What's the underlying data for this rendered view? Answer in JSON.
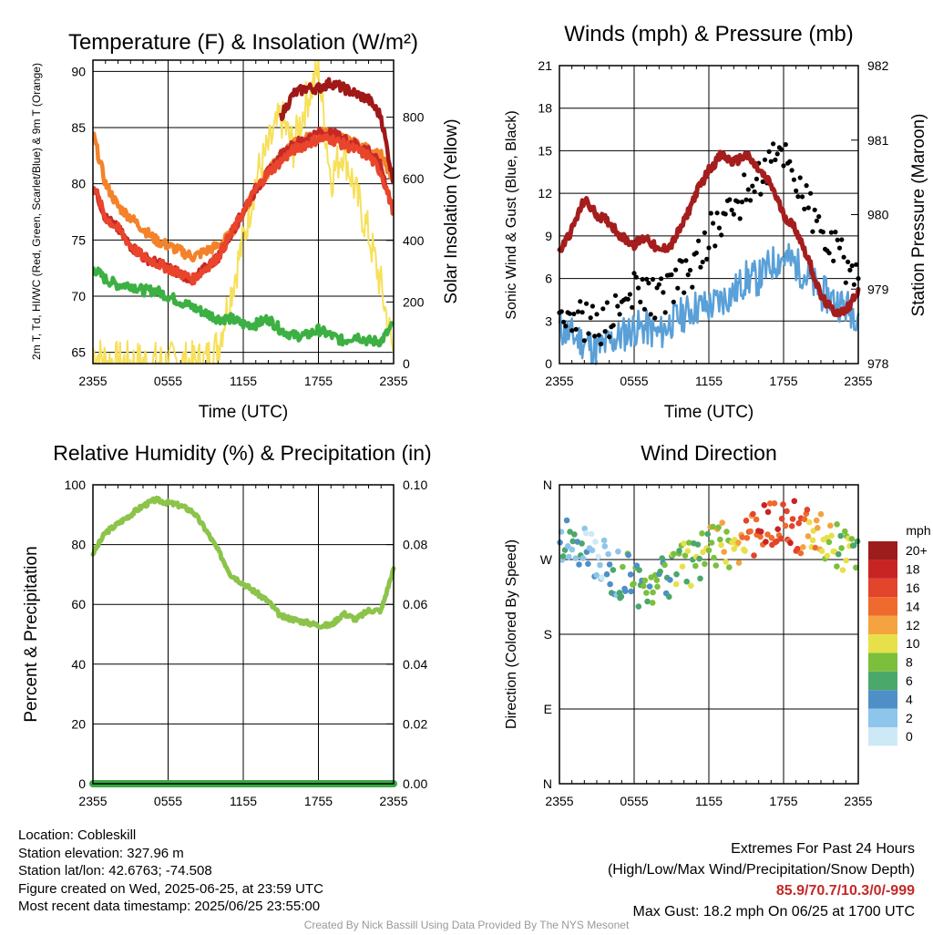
{
  "x_ticks": [
    "2355",
    "0555",
    "1155",
    "1755",
    "2355"
  ],
  "colors": {
    "red": "#c62828",
    "green": "#3cb043",
    "scarlet": "#e8452c",
    "blue": "#5aa0d8",
    "orange": "#f4822a",
    "darkred": "#a01818",
    "yellow": "#f7e05a",
    "black": "#000000",
    "maroon": "#a51d1d",
    "humidity": "#8cc34a",
    "precip": "#39a845"
  },
  "chart_data": [
    {
      "id": "temperature",
      "type": "line",
      "title": "Temperature (F) & Insolation (W/m²)",
      "xlabel": "Time (UTC)",
      "ylabel": "2m T, Td, HI/WC (Red, Green, Scarlet/Blue) & 9m T (Orange)",
      "y2label": "Solar Insolation (Yellow)",
      "ylim": [
        64,
        91
      ],
      "y2lim": [
        0,
        985
      ],
      "yticks": [
        "65",
        "70",
        "75",
        "80",
        "85",
        "90"
      ],
      "y2ticks": [
        "0",
        "200",
        "400",
        "600",
        "800"
      ],
      "x": [
        0,
        1,
        2,
        3,
        4,
        5,
        6,
        7,
        8,
        9,
        10,
        11,
        12,
        13,
        14,
        15,
        16,
        17,
        18,
        19,
        20,
        21,
        22,
        23,
        24
      ],
      "series": [
        {
          "name": "Red",
          "color": "red",
          "values": [
            80,
            77,
            76,
            74.5,
            73.5,
            73,
            72.5,
            72,
            71.5,
            72.5,
            73.5,
            75.5,
            77.5,
            79.5,
            81,
            82.5,
            83.5,
            84,
            84.5,
            84.5,
            84,
            83.5,
            83,
            81.5,
            77.5
          ]
        },
        {
          "name": "Green",
          "color": "green",
          "values": [
            72.5,
            71.5,
            71,
            71,
            70.5,
            70.5,
            70,
            69.5,
            69,
            68.5,
            68,
            68,
            67.5,
            67.5,
            68,
            67,
            66.5,
            66.5,
            67,
            66.5,
            66,
            66.5,
            66,
            66,
            67.5
          ]
        },
        {
          "name": "Scarlet",
          "color": "scarlet",
          "values": [
            80,
            77,
            76,
            74.5,
            73.5,
            73,
            72.5,
            72,
            71.5,
            72.5,
            73.5,
            75.5,
            77.5,
            79.5,
            81,
            82,
            83,
            83.5,
            84,
            84,
            83.5,
            83,
            82.5,
            81,
            77.5
          ]
        },
        {
          "name": "Orange",
          "color": "orange",
          "values": [
            84.5,
            80,
            78,
            77,
            76,
            75,
            74.5,
            74,
            73.5,
            74,
            74.5,
            75.5,
            77.5,
            79.5,
            81,
            82.5,
            83.5,
            84,
            84.5,
            84.5,
            84,
            83.5,
            83,
            82.5,
            80
          ]
        },
        {
          "name": "Dark red",
          "color": "darkred",
          "values": [
            null,
            null,
            null,
            null,
            null,
            null,
            null,
            null,
            null,
            null,
            null,
            null,
            null,
            null,
            null,
            86,
            88,
            88.5,
            88.5,
            89,
            88.5,
            88,
            87.5,
            86,
            80
          ]
        },
        {
          "name": "Yellow",
          "color": "yellow",
          "axis": "y2",
          "values": [
            40,
            10,
            5,
            5,
            5,
            5,
            5,
            5,
            5,
            10,
            60,
            230,
            400,
            600,
            700,
            800,
            700,
            850,
            950,
            600,
            700,
            550,
            420,
            250,
            30
          ]
        }
      ]
    },
    {
      "id": "winds",
      "type": "scatter",
      "title": "Winds (mph) & Pressure (mb)",
      "xlabel": "Time (UTC)",
      "ylabel": "Sonic Wind & Gust (Blue, Black)",
      "y2label": "Station Pressure (Maroon)",
      "ylim": [
        0,
        21
      ],
      "y2lim": [
        978,
        982
      ],
      "yticks": [
        "0",
        "3",
        "6",
        "9",
        "12",
        "15",
        "18",
        "21"
      ],
      "y2ticks": [
        "978",
        "979",
        "980",
        "981",
        "982"
      ],
      "x": [
        0,
        1,
        2,
        3,
        4,
        5,
        6,
        7,
        8,
        9,
        10,
        11,
        12,
        13,
        14,
        15,
        16,
        17,
        18,
        19,
        20,
        21,
        22,
        23,
        24
      ],
      "series": [
        {
          "name": "Blue",
          "color": "blue",
          "values": [
            2.5,
            2,
            1.5,
            1,
            1.5,
            2,
            2.5,
            2.5,
            2,
            3,
            3.5,
            4,
            4,
            4.5,
            5,
            6,
            6,
            7,
            7.5,
            7,
            6,
            5,
            4.5,
            4,
            3.5
          ]
        },
        {
          "name": "Black",
          "color": "black",
          "values": [
            4,
            3.5,
            3,
            2.5,
            3,
            4,
            5,
            5,
            4.5,
            5.5,
            6,
            7,
            9,
            10,
            11,
            12,
            13,
            14,
            15,
            13,
            11,
            9,
            8,
            7,
            6
          ]
        },
        {
          "name": "Maroon",
          "color": "maroon",
          "axis": "y2",
          "values": [
            979.5,
            979.8,
            980.2,
            980.0,
            979.9,
            979.7,
            979.6,
            979.7,
            979.5,
            979.6,
            979.9,
            980.3,
            980.6,
            980.8,
            980.7,
            980.8,
            980.6,
            980.4,
            980.0,
            979.8,
            979.4,
            978.9,
            978.7,
            978.7,
            979.0
          ]
        }
      ]
    },
    {
      "id": "humidity",
      "type": "line",
      "title": "Relative Humidity (%) & Precipitation (in)",
      "xlabel": "",
      "ylabel": "Percent & Precipitation",
      "ylim": [
        0,
        100
      ],
      "y2lim": [
        0,
        0.1
      ],
      "yticks": [
        "0",
        "20",
        "40",
        "60",
        "80",
        "100"
      ],
      "y2ticks": [
        "0.00",
        "0.02",
        "0.04",
        "0.06",
        "0.08",
        "0.10"
      ],
      "x": [
        0,
        1,
        2,
        3,
        4,
        5,
        6,
        7,
        8,
        9,
        10,
        11,
        12,
        13,
        14,
        15,
        16,
        17,
        18,
        19,
        20,
        21,
        22,
        23,
        24
      ],
      "series": [
        {
          "name": "Relative Humidity",
          "color": "humidity",
          "values": [
            77,
            84,
            87,
            90,
            93,
            95,
            94,
            93,
            91,
            85,
            78,
            70,
            67,
            64,
            61,
            56,
            55,
            54,
            53,
            53,
            57,
            55,
            58,
            58,
            72
          ]
        },
        {
          "name": "Precipitation",
          "color": "precip",
          "axis": "y2",
          "values": [
            0,
            0,
            0,
            0,
            0,
            0,
            0,
            0,
            0,
            0,
            0,
            0,
            0,
            0,
            0,
            0,
            0,
            0,
            0,
            0,
            0,
            0,
            0,
            0,
            0
          ]
        }
      ]
    },
    {
      "id": "direction",
      "type": "scatter",
      "title": "Wind Direction",
      "xlabel": "",
      "ylabel": "Direction (Colored By Speed)",
      "ylim": [
        0,
        360
      ],
      "yticks": [
        "N",
        "E",
        "S",
        "W",
        "N"
      ],
      "legend": {
        "title": "mph",
        "labels": [
          "0",
          "2",
          "4",
          "6",
          "8",
          "10",
          "12",
          "14",
          "16",
          "18",
          "20+"
        ],
        "colors": [
          "#cde9f7",
          "#8ec5ea",
          "#4f8fc8",
          "#4aa86a",
          "#7cbf3c",
          "#e8e04a",
          "#f4a340",
          "#ee6a2e",
          "#e2442c",
          "#c82424",
          "#9d1c1c"
        ]
      },
      "x": [
        0,
        1,
        2,
        3,
        4,
        5,
        6,
        7,
        8,
        9,
        10,
        11,
        12,
        13,
        14,
        15,
        16,
        17,
        18,
        19,
        20,
        21,
        22,
        23,
        24
      ],
      "values": [
        285,
        290,
        280,
        275,
        260,
        250,
        245,
        240,
        250,
        255,
        265,
        270,
        280,
        285,
        290,
        300,
        305,
        310,
        315,
        310,
        300,
        295,
        290,
        285,
        290
      ],
      "speed": [
        2,
        2,
        1,
        1,
        2,
        3,
        3,
        3,
        3,
        4,
        4,
        4,
        5,
        5,
        6,
        7,
        8,
        8,
        8,
        7,
        6,
        5,
        4,
        4,
        3
      ]
    }
  ],
  "footer": {
    "location": "Location: Cobleskill",
    "elevation": "Station elevation: 327.96 m",
    "latlon": "Station lat/lon: 42.6763; -74.508",
    "created": "Figure created on Wed, 2025-06-25, at 23:59 UTC",
    "recent": "Most recent data timestamp: 2025/06/25 23:55:00",
    "extremes_title": "Extremes For Past 24 Hours",
    "extremes_sub": "(High/Low/Max Wind/Precipitation/Snow Depth)",
    "extremes_values": "85.9/70.7/10.3/0/-999",
    "max_gust": "Max Gust: 18.2 mph On 06/25 at 1700 UTC",
    "credit": "Created By Nick Bassill Using Data Provided By The NYS Mesonet"
  }
}
